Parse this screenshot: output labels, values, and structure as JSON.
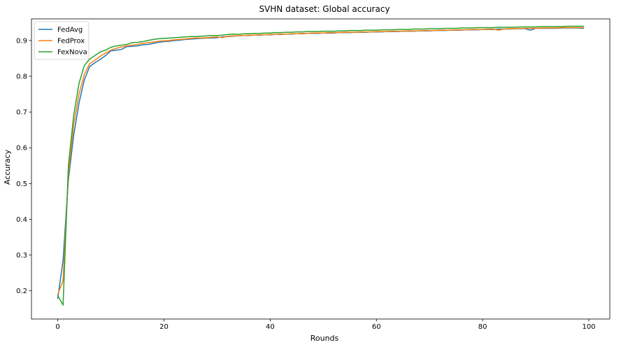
{
  "chart_data": {
    "type": "line",
    "title": "SVHN dataset: Global accuracy",
    "xlabel": "Rounds",
    "ylabel": "Accuracy",
    "xlim": [
      -4.95,
      103.95
    ],
    "ylim": [
      0.121,
      0.9605
    ],
    "xticks": [
      0,
      20,
      40,
      60,
      80,
      100
    ],
    "yticks": [
      0.2,
      0.3,
      0.4,
      0.5,
      0.6,
      0.7,
      0.8,
      0.9
    ],
    "grid": false,
    "legend_position": "upper-left",
    "series": [
      {
        "name": "FedAvg",
        "color": "#1f77b4",
        "x": [
          0,
          1,
          2,
          3,
          4,
          5,
          6,
          7,
          8,
          9,
          10,
          11,
          12,
          13,
          14,
          15,
          16,
          17,
          18,
          19,
          20,
          21,
          22,
          23,
          24,
          25,
          26,
          27,
          28,
          29,
          30,
          31,
          32,
          33,
          34,
          35,
          36,
          37,
          38,
          39,
          40,
          41,
          42,
          43,
          44,
          45,
          46,
          47,
          48,
          49,
          50,
          51,
          52,
          53,
          54,
          55,
          56,
          57,
          58,
          59,
          60,
          61,
          62,
          63,
          64,
          65,
          66,
          67,
          68,
          69,
          70,
          71,
          72,
          73,
          74,
          75,
          76,
          77,
          78,
          79,
          80,
          81,
          82,
          83,
          84,
          85,
          86,
          87,
          88,
          89,
          90,
          91,
          92,
          93,
          94,
          95,
          96,
          97,
          98,
          99
        ],
        "values": [
          0.179,
          0.285,
          0.51,
          0.635,
          0.725,
          0.79,
          0.827,
          0.838,
          0.847,
          0.858,
          0.871,
          0.873,
          0.875,
          0.883,
          0.884,
          0.885,
          0.888,
          0.889,
          0.892,
          0.895,
          0.897,
          0.898,
          0.9,
          0.901,
          0.903,
          0.904,
          0.905,
          0.906,
          0.907,
          0.907,
          0.908,
          0.91,
          0.911,
          0.912,
          0.913,
          0.914,
          0.914,
          0.915,
          0.915,
          0.916,
          0.916,
          0.917,
          0.917,
          0.918,
          0.918,
          0.919,
          0.919,
          0.92,
          0.92,
          0.92,
          0.921,
          0.921,
          0.921,
          0.922,
          0.922,
          0.922,
          0.923,
          0.923,
          0.923,
          0.924,
          0.924,
          0.924,
          0.925,
          0.925,
          0.925,
          0.926,
          0.926,
          0.926,
          0.927,
          0.927,
          0.927,
          0.928,
          0.928,
          0.928,
          0.929,
          0.929,
          0.929,
          0.93,
          0.93,
          0.93,
          0.931,
          0.931,
          0.931,
          0.932,
          0.932,
          0.932,
          0.933,
          0.933,
          0.933,
          0.929,
          0.934,
          0.934,
          0.934,
          0.934,
          0.934,
          0.935,
          0.935,
          0.935,
          0.935,
          0.934
        ]
      },
      {
        "name": "FedProx",
        "color": "#ff7f0e",
        "x": [
          0,
          1,
          2,
          3,
          4,
          5,
          6,
          7,
          8,
          9,
          10,
          11,
          12,
          13,
          14,
          15,
          16,
          17,
          18,
          19,
          20,
          21,
          22,
          23,
          24,
          25,
          26,
          27,
          28,
          29,
          30,
          31,
          32,
          33,
          34,
          35,
          36,
          37,
          38,
          39,
          40,
          41,
          42,
          43,
          44,
          45,
          46,
          47,
          48,
          49,
          50,
          51,
          52,
          53,
          54,
          55,
          56,
          57,
          58,
          59,
          60,
          61,
          62,
          63,
          64,
          65,
          66,
          67,
          68,
          69,
          70,
          71,
          72,
          73,
          74,
          75,
          76,
          77,
          78,
          79,
          80,
          81,
          82,
          83,
          84,
          85,
          86,
          87,
          88,
          89,
          90,
          91,
          92,
          93,
          94,
          95,
          96,
          97,
          98,
          99
        ],
        "values": [
          0.19,
          0.228,
          0.525,
          0.665,
          0.75,
          0.805,
          0.835,
          0.845,
          0.856,
          0.865,
          0.873,
          0.878,
          0.882,
          0.885,
          0.887,
          0.889,
          0.892,
          0.894,
          0.896,
          0.898,
          0.899,
          0.9,
          0.902,
          0.903,
          0.904,
          0.906,
          0.907,
          0.907,
          0.908,
          0.909,
          0.91,
          0.908,
          0.912,
          0.913,
          0.913,
          0.914,
          0.915,
          0.915,
          0.916,
          0.916,
          0.917,
          0.917,
          0.918,
          0.918,
          0.919,
          0.919,
          0.92,
          0.92,
          0.921,
          0.921,
          0.921,
          0.922,
          0.922,
          0.922,
          0.923,
          0.923,
          0.923,
          0.924,
          0.924,
          0.924,
          0.925,
          0.925,
          0.925,
          0.926,
          0.926,
          0.926,
          0.927,
          0.927,
          0.927,
          0.928,
          0.928,
          0.928,
          0.929,
          0.929,
          0.929,
          0.93,
          0.93,
          0.93,
          0.931,
          0.931,
          0.931,
          0.932,
          0.932,
          0.929,
          0.932,
          0.933,
          0.933,
          0.933,
          0.934,
          0.934,
          0.934,
          0.935,
          0.935,
          0.935,
          0.935,
          0.936,
          0.936,
          0.936,
          0.936,
          0.936
        ]
      },
      {
        "name": "FexNova",
        "color": "#2ca02c",
        "x": [
          0,
          1,
          2,
          3,
          4,
          5,
          6,
          7,
          8,
          9,
          10,
          11,
          12,
          13,
          14,
          15,
          16,
          17,
          18,
          19,
          20,
          21,
          22,
          23,
          24,
          25,
          26,
          27,
          28,
          29,
          30,
          31,
          32,
          33,
          34,
          35,
          36,
          37,
          38,
          39,
          40,
          41,
          42,
          43,
          44,
          45,
          46,
          47,
          48,
          49,
          50,
          51,
          52,
          53,
          54,
          55,
          56,
          57,
          58,
          59,
          60,
          61,
          62,
          63,
          64,
          65,
          66,
          67,
          68,
          69,
          70,
          71,
          72,
          73,
          74,
          75,
          76,
          77,
          78,
          79,
          80,
          81,
          82,
          83,
          84,
          85,
          86,
          87,
          88,
          89,
          90,
          91,
          92,
          93,
          94,
          95,
          96,
          97,
          98,
          99
        ],
        "values": [
          0.186,
          0.16,
          0.55,
          0.69,
          0.78,
          0.83,
          0.848,
          0.858,
          0.868,
          0.873,
          0.881,
          0.885,
          0.887,
          0.889,
          0.894,
          0.895,
          0.897,
          0.9,
          0.903,
          0.905,
          0.906,
          0.907,
          0.908,
          0.909,
          0.91,
          0.911,
          0.911,
          0.912,
          0.913,
          0.914,
          0.914,
          0.915,
          0.917,
          0.918,
          0.917,
          0.919,
          0.919,
          0.92,
          0.92,
          0.921,
          0.921,
          0.922,
          0.922,
          0.923,
          0.923,
          0.924,
          0.924,
          0.925,
          0.925,
          0.925,
          0.926,
          0.926,
          0.926,
          0.927,
          0.927,
          0.928,
          0.928,
          0.928,
          0.929,
          0.929,
          0.929,
          0.93,
          0.93,
          0.93,
          0.931,
          0.931,
          0.931,
          0.932,
          0.932,
          0.932,
          0.933,
          0.933,
          0.933,
          0.934,
          0.934,
          0.934,
          0.935,
          0.935,
          0.935,
          0.936,
          0.936,
          0.936,
          0.936,
          0.937,
          0.937,
          0.937,
          0.937,
          0.938,
          0.938,
          0.938,
          0.938,
          0.939,
          0.939,
          0.939,
          0.939,
          0.939,
          0.94,
          0.94,
          0.94,
          0.94
        ]
      }
    ]
  }
}
